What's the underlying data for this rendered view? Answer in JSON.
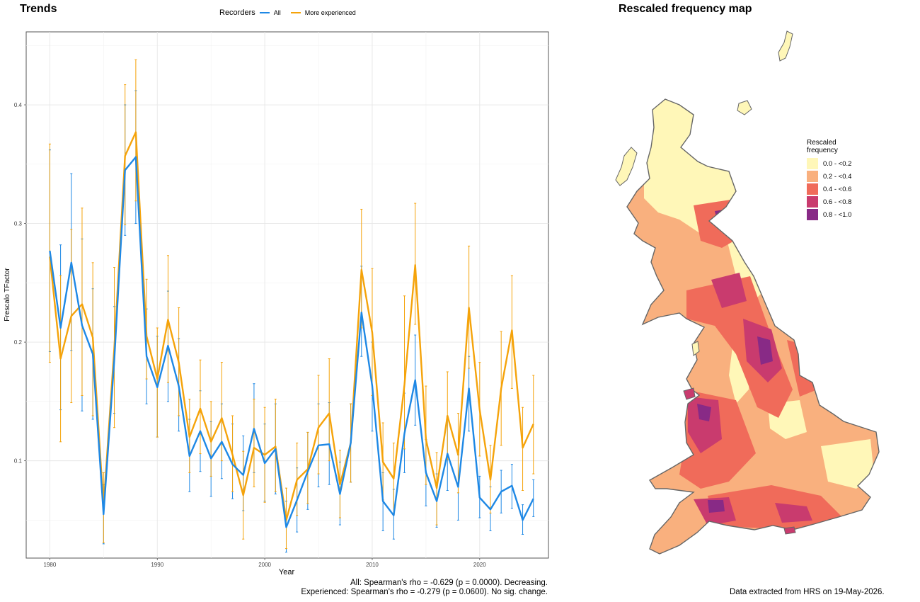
{
  "trends": {
    "title": "Trends",
    "legend_title": "Recorders",
    "stats_all": "All: Spearman's rho = -0.629 (p = 0.0000). Decreasing.",
    "stats_experienced": "Experienced: Spearman's rho = -0.279 (p = 0.0600). No sig. change."
  },
  "map": {
    "title": "Rescaled frequency map",
    "legend_title_line1": "Rescaled",
    "legend_title_line2": "frequency",
    "legend": [
      {
        "label": "0.0 - <0.2",
        "color": "#FFF7B8"
      },
      {
        "label": "0.2 - <0.4",
        "color": "#F9B07E"
      },
      {
        "label": "0.4 - <0.6",
        "color": "#F06B5A"
      },
      {
        "label": "0.6 - <0.8",
        "color": "#C93B6E"
      },
      {
        "label": "0.8 - <1.0",
        "color": "#882A86"
      }
    ],
    "footer": "Data extracted from HRS on 19-May-2026."
  },
  "chart_data": {
    "type": "line",
    "xlabel": "Year",
    "ylabel": "Frescalo TFactor",
    "xlim": [
      1977.8,
      2026.4
    ],
    "ylim": [
      0.018,
      0.4615
    ],
    "x_ticks": [
      1980,
      1990,
      2000,
      2010,
      2020
    ],
    "y_ticks": [
      0.1,
      0.2,
      0.3,
      0.4
    ],
    "grid": true,
    "legend_position": "top",
    "x": [
      1980,
      1981,
      1982,
      1983,
      1984,
      1985,
      1986,
      1987,
      1988,
      1989,
      1990,
      1991,
      1992,
      1993,
      1994,
      1995,
      1996,
      1997,
      1998,
      1999,
      2000,
      2001,
      2002,
      2003,
      2004,
      2005,
      2006,
      2007,
      2008,
      2009,
      2010,
      2011,
      2012,
      2013,
      2014,
      2015,
      2016,
      2017,
      2018,
      2019,
      2020,
      2021,
      2022,
      2023,
      2024,
      2025
    ],
    "series": [
      {
        "name": "All",
        "color": "#1E88E5",
        "values": [
          0.277,
          0.212,
          0.267,
          0.214,
          0.19,
          0.055,
          0.185,
          0.345,
          0.356,
          0.188,
          0.162,
          0.197,
          0.163,
          0.104,
          0.125,
          0.102,
          0.116,
          0.097,
          0.088,
          0.127,
          0.098,
          0.11,
          0.044,
          0.067,
          0.091,
          0.113,
          0.114,
          0.072,
          0.115,
          0.225,
          0.163,
          0.066,
          0.054,
          0.123,
          0.168,
          0.09,
          0.066,
          0.106,
          0.078,
          0.161,
          0.069,
          0.059,
          0.074,
          0.079,
          0.05,
          0.068
        ],
        "lower": [
          0.192,
          0.143,
          0.193,
          0.142,
          0.135,
          0.03,
          0.14,
          0.29,
          0.3,
          0.148,
          0.12,
          0.15,
          0.125,
          0.074,
          0.091,
          0.07,
          0.085,
          0.068,
          0.058,
          0.09,
          0.066,
          0.072,
          0.023,
          0.04,
          0.059,
          0.078,
          0.08,
          0.046,
          0.082,
          0.188,
          0.125,
          0.041,
          0.034,
          0.09,
          0.13,
          0.062,
          0.044,
          0.075,
          0.05,
          0.125,
          0.052,
          0.041,
          0.056,
          0.06,
          0.038,
          0.053
        ],
        "upper": [
          0.362,
          0.282,
          0.342,
          0.287,
          0.245,
          0.08,
          0.23,
          0.4,
          0.412,
          0.228,
          0.205,
          0.243,
          0.203,
          0.135,
          0.159,
          0.133,
          0.148,
          0.131,
          0.121,
          0.165,
          0.131,
          0.148,
          0.066,
          0.094,
          0.124,
          0.148,
          0.149,
          0.099,
          0.148,
          0.264,
          0.2,
          0.09,
          0.076,
          0.157,
          0.206,
          0.118,
          0.089,
          0.137,
          0.105,
          0.188,
          0.087,
          0.078,
          0.092,
          0.097,
          0.063,
          0.084
        ]
      },
      {
        "name": "More experienced",
        "color": "#F5A30A",
        "values": [
          0.272,
          0.186,
          0.222,
          0.232,
          0.204,
          0.061,
          0.195,
          0.357,
          0.377,
          0.205,
          0.169,
          0.219,
          0.183,
          0.12,
          0.144,
          0.116,
          0.136,
          0.105,
          0.071,
          0.111,
          0.105,
          0.112,
          0.05,
          0.084,
          0.093,
          0.128,
          0.14,
          0.08,
          0.115,
          0.261,
          0.208,
          0.099,
          0.085,
          0.164,
          0.265,
          0.118,
          0.077,
          0.138,
          0.105,
          0.229,
          0.143,
          0.084,
          0.161,
          0.21,
          0.111,
          0.131
        ],
        "lower": [
          0.183,
          0.116,
          0.149,
          0.155,
          0.138,
          0.031,
          0.128,
          0.299,
          0.319,
          0.169,
          0.12,
          0.166,
          0.138,
          0.09,
          0.106,
          0.087,
          0.1,
          0.074,
          0.034,
          0.078,
          0.065,
          0.074,
          0.026,
          0.054,
          0.064,
          0.089,
          0.1,
          0.052,
          0.082,
          0.212,
          0.155,
          0.067,
          0.055,
          0.11,
          0.215,
          0.08,
          0.046,
          0.101,
          0.073,
          0.178,
          0.104,
          0.056,
          0.113,
          0.161,
          0.075,
          0.089
        ],
        "upper": [
          0.367,
          0.256,
          0.295,
          0.313,
          0.267,
          0.09,
          0.263,
          0.417,
          0.438,
          0.253,
          0.212,
          0.273,
          0.229,
          0.152,
          0.185,
          0.15,
          0.183,
          0.138,
          0.108,
          0.152,
          0.145,
          0.152,
          0.077,
          0.115,
          0.124,
          0.172,
          0.186,
          0.109,
          0.148,
          0.312,
          0.262,
          0.132,
          0.115,
          0.239,
          0.317,
          0.163,
          0.107,
          0.175,
          0.14,
          0.281,
          0.183,
          0.113,
          0.209,
          0.256,
          0.145,
          0.172
        ]
      }
    ]
  }
}
